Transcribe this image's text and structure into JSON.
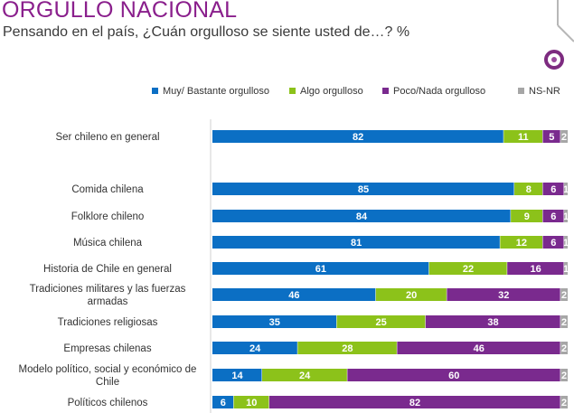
{
  "title": "ORGULLO NACIONAL",
  "subtitle": "Pensando en el país, ¿Cuán orgulloso se siente usted de…? %",
  "colors": {
    "muy": "#0b6fc4",
    "algo": "#8cc21a",
    "poco": "#7a2a8e",
    "nsnr": "#a6a6a6",
    "title": "#8a1f8c",
    "logo_ring": "#7d2b80"
  },
  "chart_data": {
    "type": "bar",
    "orientation": "horizontal",
    "stacked": true,
    "xlim": [
      0,
      100
    ],
    "legend_position": "top",
    "categories": [
      [
        "Ser chileno en general"
      ],
      [
        "Comida chilena"
      ],
      [
        "Folklore chileno"
      ],
      [
        "Música chilena"
      ],
      [
        "Historia de Chile en general"
      ],
      [
        "Tradiciones militares y las fuerzas",
        "armadas"
      ],
      [
        "Tradiciones religiosas"
      ],
      [
        "Empresas chilenas"
      ],
      [
        "Modelo político, social y económico de",
        "Chile"
      ],
      [
        "Políticos chilenos"
      ]
    ],
    "series": [
      {
        "name": "Muy/ Bastante orgulloso",
        "color_key": "muy",
        "values": [
          82,
          85,
          84,
          81,
          61,
          46,
          35,
          24,
          14,
          6
        ]
      },
      {
        "name": "Algo orgulloso",
        "color_key": "algo",
        "values": [
          11,
          8,
          9,
          12,
          22,
          20,
          25,
          28,
          24,
          10
        ]
      },
      {
        "name": "Poco/Nada orgulloso",
        "color_key": "poco",
        "values": [
          5,
          6,
          6,
          6,
          16,
          32,
          38,
          46,
          60,
          82
        ]
      },
      {
        "name": "NS-NR",
        "color_key": "nsnr",
        "values": [
          2,
          1,
          1,
          1,
          1,
          2,
          2,
          2,
          2,
          2
        ]
      }
    ]
  }
}
